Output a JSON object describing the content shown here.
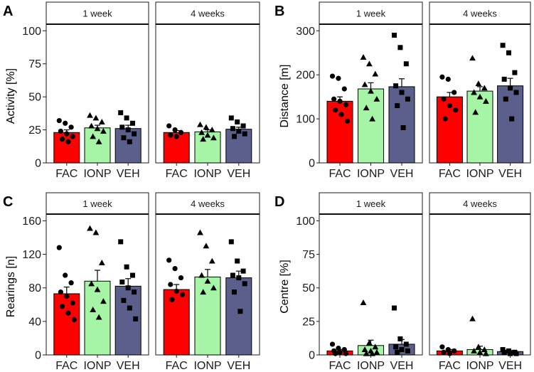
{
  "chart_data": [
    {
      "type": "bar",
      "panel": "A",
      "ylabel": "Activity [%]",
      "ylim": [
        0,
        105
      ],
      "yticks": [
        0,
        25,
        50,
        75,
        100
      ],
      "facets": [
        {
          "label": "1 week",
          "bars": [
            {
              "category": "FAC",
              "mean": 23,
              "sem": 2,
              "points": [
                32,
                30,
                27,
                24,
                22,
                20,
                18,
                16
              ]
            },
            {
              "category": "IONP",
              "mean": 26.5,
              "sem": 2,
              "points": [
                36,
                34,
                31,
                28,
                26,
                24,
                20,
                16
              ]
            },
            {
              "category": "VEH",
              "mean": 26,
              "sem": 2.5,
              "points": [
                38,
                34,
                30,
                27,
                25,
                22,
                19,
                16
              ]
            }
          ]
        },
        {
          "label": "4 weeks",
          "bars": [
            {
              "category": "FAC",
              "mean": 23,
              "sem": 1.5,
              "points": [
                28,
                25,
                23,
                21,
                20
              ]
            },
            {
              "category": "IONP",
              "mean": 23.5,
              "sem": 1.5,
              "points": [
                29,
                27,
                25,
                23,
                21,
                19,
                18
              ]
            },
            {
              "category": "VEH",
              "mean": 25.5,
              "sem": 1.5,
              "points": [
                34,
                31,
                28,
                26,
                24,
                22,
                20
              ]
            }
          ]
        }
      ]
    },
    {
      "type": "bar",
      "panel": "B",
      "ylabel": "Distance [m]",
      "ylim": [
        0,
        315
      ],
      "yticks": [
        0,
        100,
        200,
        300
      ],
      "facets": [
        {
          "label": "1 week",
          "bars": [
            {
              "category": "FAC",
              "mean": 140,
              "sem": 10,
              "points": [
                197,
                192,
                168,
                145,
                140,
                132,
                120,
                110,
                95
              ]
            },
            {
              "category": "IONP",
              "mean": 168,
              "sem": 14,
              "points": [
                240,
                225,
                202,
                178,
                163,
                145,
                125,
                100
              ]
            },
            {
              "category": "VEH",
              "mean": 173,
              "sem": 18,
              "points": [
                290,
                262,
                225,
                175,
                160,
                145,
                130,
                80
              ]
            }
          ]
        },
        {
          "label": "4 weeks",
          "bars": [
            {
              "category": "FAC",
              "mean": 150,
              "sem": 10,
              "points": [
                195,
                190,
                160,
                145,
                130,
                120,
                100
              ]
            },
            {
              "category": "IONP",
              "mean": 163,
              "sem": 10,
              "points": [
                238,
                180,
                170,
                160,
                150,
                140,
                115
              ]
            },
            {
              "category": "VEH",
              "mean": 175,
              "sem": 17,
              "points": [
                267,
                250,
                205,
                190,
                170,
                160,
                145,
                100
              ]
            }
          ]
        }
      ]
    },
    {
      "type": "bar",
      "panel": "C",
      "ylabel": "Rearings [n]",
      "ylim": [
        0,
        168
      ],
      "yticks": [
        0,
        40,
        80,
        120,
        160
      ],
      "facets": [
        {
          "label": "1 week",
          "bars": [
            {
              "category": "FAC",
              "mean": 73,
              "sem": 8,
              "points": [
                128,
                95,
                86,
                75,
                70,
                62,
                58,
                50,
                42
              ]
            },
            {
              "category": "IONP",
              "mean": 88,
              "sem": 13,
              "points": [
                151,
                146,
                110,
                85,
                78,
                64,
                54,
                45
              ]
            },
            {
              "category": "VEH",
              "mean": 82,
              "sem": 9,
              "points": [
                135,
                105,
                95,
                87,
                80,
                75,
                65,
                56,
                43
              ]
            }
          ]
        },
        {
          "label": "4 weeks",
          "bars": [
            {
              "category": "FAC",
              "mean": 78,
              "sem": 6,
              "points": [
                113,
                103,
                92,
                84,
                76,
                72,
                66
              ]
            },
            {
              "category": "IONP",
              "mean": 93,
              "sem": 9,
              "points": [
                146,
                130,
                112,
                95,
                88,
                80,
                75
              ]
            },
            {
              "category": "VEH",
              "mean": 92,
              "sem": 8,
              "points": [
                135,
                112,
                100,
                95,
                92,
                85,
                75,
                52
              ]
            }
          ]
        }
      ]
    },
    {
      "type": "bar",
      "panel": "D",
      "ylabel": "Centre [%]",
      "ylim": [
        0,
        105
      ],
      "yticks": [
        0,
        25,
        50,
        75,
        100
      ],
      "facets": [
        {
          "label": "1 week",
          "bars": [
            {
              "category": "FAC",
              "mean": 3,
              "sem": 1,
              "points": [
                8,
                5,
                4,
                3,
                2,
                1,
                1
              ]
            },
            {
              "category": "IONP",
              "mean": 7,
              "sem": 4,
              "points": [
                39,
                9,
                6,
                4,
                3,
                2,
                1,
                1
              ]
            },
            {
              "category": "VEH",
              "mean": 8,
              "sem": 3.5,
              "points": [
                35,
                12,
                8,
                6,
                4,
                3,
                2
              ]
            }
          ]
        },
        {
          "label": "4 weeks",
          "bars": [
            {
              "category": "FAC",
              "mean": 3,
              "sem": 1,
              "points": [
                6,
                4,
                3,
                2,
                1
              ]
            },
            {
              "category": "IONP",
              "mean": 4,
              "sem": 2.5,
              "points": [
                27,
                6,
                4,
                3,
                2,
                1
              ]
            },
            {
              "category": "VEH",
              "mean": 2.5,
              "sem": 0.8,
              "points": [
                4,
                3,
                2,
                2,
                1,
                1
              ]
            }
          ]
        }
      ]
    }
  ],
  "colors": {
    "FAC": "#ff0000",
    "IONP": "#a6f5a6",
    "VEH": "#5b5f8c",
    "strip_bg": "#ffffff",
    "axis": "#1a1a1a"
  },
  "point_shapes": {
    "FAC": "circle",
    "IONP": "triangle",
    "VEH": "square"
  }
}
